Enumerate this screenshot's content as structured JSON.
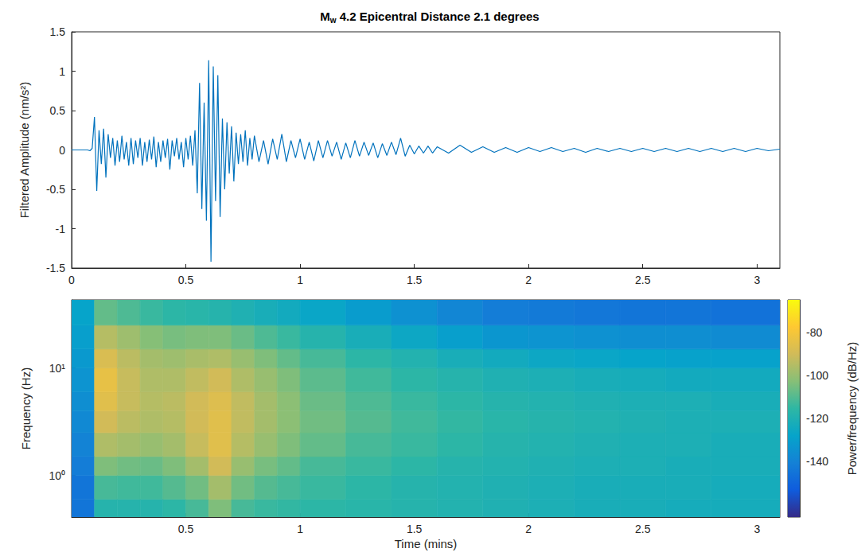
{
  "chart_data": [
    {
      "type": "line",
      "title": "Mw 4.2 Epicentral Distance 2.1 degrees",
      "y_label": "Filtered Amplitude (nm/s²)",
      "color": "#0072bd",
      "grid": false,
      "xlim": [
        0,
        3.1
      ],
      "xticks": [
        0,
        0.5,
        1,
        1.5,
        2,
        2.5,
        3
      ],
      "ylim": [
        -1.5,
        1.5
      ],
      "yticks": [
        -1.5,
        -1,
        -0.5,
        0,
        0.5,
        1,
        1.5
      ],
      "x": [
        0,
        0.01,
        0.02,
        0.03,
        0.04,
        0.05,
        0.06,
        0.07,
        0.08,
        0.09,
        0.1,
        0.11,
        0.12,
        0.13,
        0.14,
        0.15,
        0.16,
        0.17,
        0.18,
        0.19,
        0.2,
        0.21,
        0.22,
        0.23,
        0.24,
        0.25,
        0.26,
        0.27,
        0.28,
        0.29,
        0.3,
        0.31,
        0.32,
        0.33,
        0.34,
        0.35,
        0.36,
        0.37,
        0.38,
        0.39,
        0.4,
        0.41,
        0.42,
        0.43,
        0.44,
        0.45,
        0.46,
        0.47,
        0.48,
        0.49,
        0.5,
        0.51,
        0.52,
        0.53,
        0.54,
        0.55,
        0.56,
        0.57,
        0.58,
        0.59,
        0.6,
        0.61,
        0.62,
        0.63,
        0.64,
        0.65,
        0.66,
        0.67,
        0.68,
        0.69,
        0.7,
        0.71,
        0.72,
        0.73,
        0.74,
        0.75,
        0.76,
        0.77,
        0.78,
        0.79,
        0.8,
        0.82,
        0.84,
        0.86,
        0.88,
        0.9,
        0.92,
        0.94,
        0.96,
        0.98,
        1.0,
        1.02,
        1.04,
        1.06,
        1.08,
        1.1,
        1.12,
        1.14,
        1.16,
        1.18,
        1.2,
        1.22,
        1.24,
        1.26,
        1.28,
        1.3,
        1.32,
        1.34,
        1.36,
        1.38,
        1.4,
        1.42,
        1.44,
        1.46,
        1.48,
        1.5,
        1.52,
        1.54,
        1.56,
        1.58,
        1.6,
        1.65,
        1.7,
        1.75,
        1.8,
        1.85,
        1.9,
        1.95,
        2.0,
        2.05,
        2.1,
        2.15,
        2.2,
        2.25,
        2.3,
        2.35,
        2.4,
        2.45,
        2.5,
        2.55,
        2.6,
        2.65,
        2.7,
        2.75,
        2.8,
        2.85,
        2.9,
        2.95,
        3.0,
        3.05,
        3.1
      ],
      "values": [
        0,
        0,
        0,
        0,
        0,
        0,
        0,
        0,
        -0.01,
        0.02,
        0.42,
        -0.52,
        0.25,
        -0.18,
        0.27,
        -0.35,
        0.2,
        -0.1,
        0.15,
        -0.2,
        0.12,
        -0.15,
        0.18,
        -0.12,
        0.1,
        -0.2,
        0.15,
        -0.18,
        0.12,
        -0.1,
        0.15,
        -0.2,
        0.1,
        -0.15,
        0.13,
        -0.12,
        0.17,
        -0.22,
        0.1,
        -0.15,
        0.12,
        -0.1,
        0.14,
        -0.25,
        0.12,
        -0.08,
        0.15,
        -0.12,
        0.1,
        -0.22,
        0.15,
        -0.12,
        0.18,
        -0.2,
        0.25,
        -0.55,
        0.85,
        -0.75,
        0.6,
        -0.9,
        1.14,
        -1.42,
        1.06,
        -0.65,
        0.95,
        -0.85,
        0.4,
        -0.5,
        0.35,
        -0.3,
        0.3,
        -0.4,
        0.22,
        -0.18,
        0.2,
        -0.15,
        0.25,
        -0.2,
        0.15,
        -0.12,
        0.18,
        -0.15,
        0.12,
        -0.18,
        0.14,
        -0.12,
        0.2,
        -0.15,
        0.12,
        -0.1,
        0.14,
        -0.12,
        0.1,
        -0.14,
        0.12,
        -0.1,
        0.12,
        -0.08,
        0.1,
        -0.12,
        0.09,
        -0.1,
        0.12,
        -0.08,
        0.1,
        -0.07,
        0.09,
        -0.1,
        0.08,
        -0.07,
        0.1,
        -0.06,
        0.15,
        -0.08,
        0.06,
        -0.05,
        0.05,
        -0.04,
        0.05,
        -0.04,
        0.04,
        -0.04,
        0.06,
        -0.03,
        0.04,
        -0.03,
        0.03,
        -0.03,
        0.03,
        -0.02,
        0.03,
        -0.02,
        0.02,
        -0.03,
        0.02,
        -0.02,
        0.02,
        -0.02,
        0.02,
        -0.02,
        0.02,
        -0.02,
        0.02,
        -0.02,
        0.02,
        -0.02,
        0.02,
        -0.02,
        0.02,
        -0.01,
        0.01
      ]
    },
    {
      "type": "spectrogram",
      "x_label": "Time (mins)",
      "y_label": "Frequency (Hz)",
      "log": "y",
      "grid": false,
      "xlim": [
        0,
        3.1
      ],
      "xticks": [
        0.5,
        1,
        1.5,
        2,
        2.5,
        3
      ],
      "ylim": [
        0.41,
        43
      ],
      "yticks": [
        {
          "value": 1,
          "label": "10⁰"
        },
        {
          "value": 10,
          "label": "10¹"
        }
      ],
      "time_edges": [
        0,
        0.1,
        0.2,
        0.3,
        0.4,
        0.5,
        0.6,
        0.7,
        0.8,
        0.9,
        1.0,
        1.2,
        1.4,
        1.6,
        1.8,
        2.0,
        2.2,
        2.4,
        2.6,
        2.8,
        3.1
      ],
      "freq_edges": [
        0.41,
        0.6,
        1,
        1.5,
        2.5,
        4,
        6,
        10,
        15,
        25,
        43
      ],
      "power": [
        [
          -145,
          -118,
          -118,
          -118,
          -116,
          -112,
          -104,
          -112,
          -114,
          -115,
          -116,
          -117,
          -118,
          -119,
          -120,
          -121,
          -122,
          -122,
          -123,
          -123
        ],
        [
          -145,
          -112,
          -113,
          -113,
          -110,
          -106,
          -98,
          -106,
          -110,
          -112,
          -114,
          -116,
          -118,
          -119,
          -120,
          -121,
          -122,
          -122,
          -122,
          -123
        ],
        [
          -142,
          -104,
          -106,
          -107,
          -104,
          -98,
          -90,
          -100,
          -105,
          -108,
          -112,
          -114,
          -116,
          -118,
          -119,
          -120,
          -121,
          -121,
          -122,
          -122
        ],
        [
          -140,
          -96,
          -98,
          -100,
          -98,
          -92,
          -86,
          -95,
          -100,
          -104,
          -108,
          -112,
          -114,
          -116,
          -118,
          -119,
          -120,
          -121,
          -121,
          -122
        ],
        [
          -138,
          -90,
          -94,
          -96,
          -95,
          -90,
          -86,
          -93,
          -98,
          -102,
          -106,
          -110,
          -113,
          -115,
          -117,
          -118,
          -119,
          -120,
          -121,
          -121
        ],
        [
          -136,
          -86,
          -92,
          -95,
          -94,
          -90,
          -87,
          -93,
          -98,
          -102,
          -107,
          -111,
          -114,
          -116,
          -118,
          -119,
          -120,
          -121,
          -121,
          -122
        ],
        [
          -134,
          -84,
          -92,
          -96,
          -96,
          -93,
          -90,
          -96,
          -100,
          -104,
          -109,
          -113,
          -116,
          -118,
          -120,
          -121,
          -122,
          -123,
          -124,
          -124
        ],
        [
          -132,
          -88,
          -94,
          -98,
          -99,
          -97,
          -96,
          -100,
          -104,
          -108,
          -112,
          -116,
          -119,
          -122,
          -124,
          -126,
          -127,
          -128,
          -129,
          -129
        ],
        [
          -130,
          -95,
          -99,
          -103,
          -105,
          -104,
          -104,
          -107,
          -111,
          -114,
          -118,
          -122,
          -126,
          -130,
          -133,
          -134,
          -135,
          -136,
          -136,
          -137
        ],
        [
          -128,
          -108,
          -111,
          -114,
          -116,
          -117,
          -118,
          -120,
          -122,
          -124,
          -127,
          -131,
          -135,
          -139,
          -142,
          -143,
          -144,
          -145,
          -145,
          -146
        ]
      ],
      "colorbar_label": "Power/frequency (dB/Hz)",
      "colorbar_range": [
        -166,
        -65
      ],
      "colorbar_ticks": [
        -140,
        -120,
        -100,
        -80
      ]
    }
  ]
}
